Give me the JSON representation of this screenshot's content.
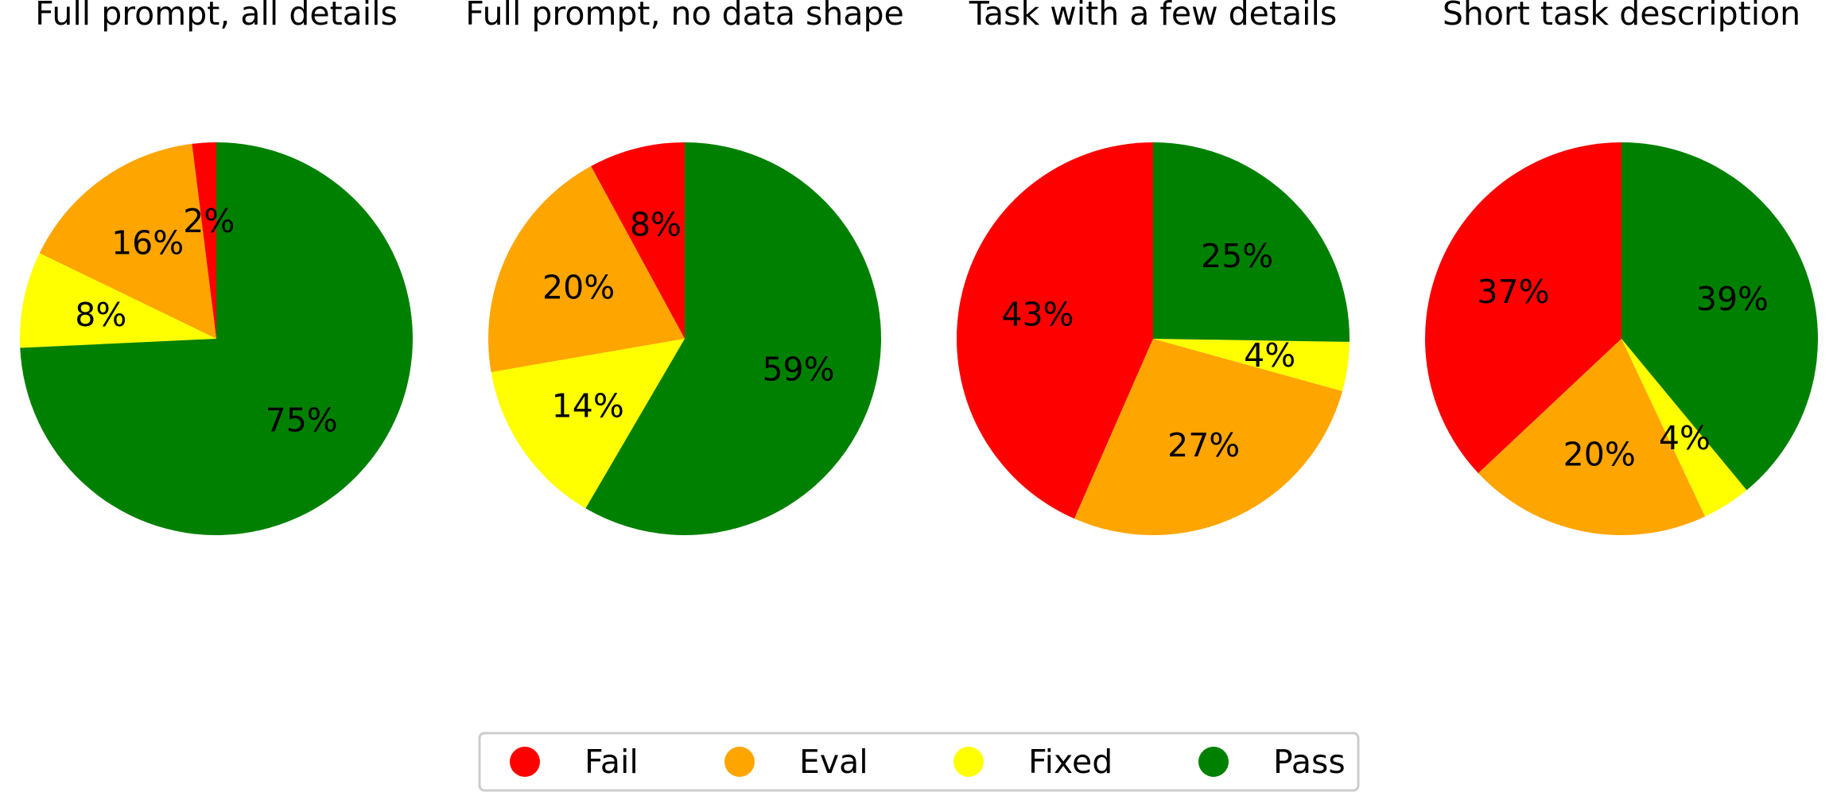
{
  "chart_data": [
    {
      "type": "pie",
      "title": "Full prompt, all details",
      "categories": [
        "Fail",
        "Eval",
        "Fixed",
        "Pass"
      ],
      "values": [
        2,
        16,
        8,
        75
      ],
      "labels": [
        "2%",
        "16%",
        "8%",
        "75%"
      ]
    },
    {
      "type": "pie",
      "title": "Full prompt, no data shape",
      "categories": [
        "Fail",
        "Eval",
        "Fixed",
        "Pass"
      ],
      "values": [
        8,
        20,
        14,
        59
      ],
      "labels": [
        "8%",
        "20%",
        "14%",
        "59%"
      ]
    },
    {
      "type": "pie",
      "title": "Task with a few details",
      "categories": [
        "Fail",
        "Eval",
        "Fixed",
        "Pass"
      ],
      "values": [
        43,
        27,
        4,
        25
      ],
      "labels": [
        "43%",
        "27%",
        "4%",
        "25%"
      ]
    },
    {
      "type": "pie",
      "title": "Short task description",
      "categories": [
        "Fail",
        "Eval",
        "Fixed",
        "Pass"
      ],
      "values": [
        37,
        20,
        4,
        39
      ],
      "labels": [
        "37%",
        "20%",
        "4%",
        "39%"
      ]
    }
  ],
  "legend": {
    "placement": "bottom-center",
    "items": [
      {
        "label": "Fail",
        "color": "#ff0000"
      },
      {
        "label": "Eval",
        "color": "#ffa500"
      },
      {
        "label": "Fixed",
        "color": "#ffff00"
      },
      {
        "label": "Pass",
        "color": "#008000"
      }
    ]
  }
}
